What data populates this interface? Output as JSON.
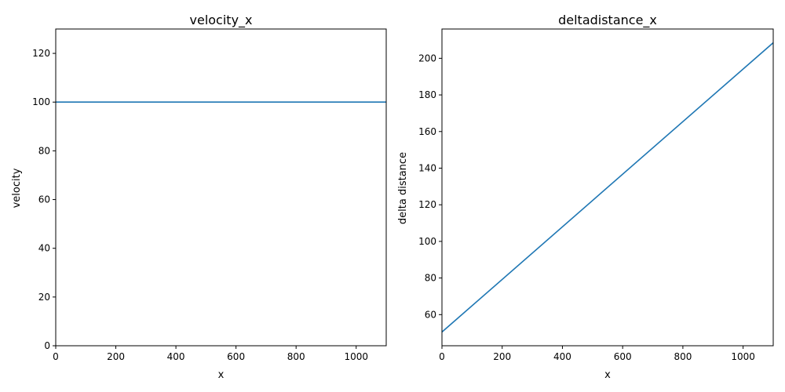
{
  "chart_data": [
    {
      "type": "line",
      "title": "velocity_x",
      "xlabel": "x",
      "ylabel": "velocity",
      "xlim": [
        0,
        1100
      ],
      "ylim": [
        0,
        130
      ],
      "xticks": [
        0,
        200,
        400,
        600,
        800,
        1000
      ],
      "yticks": [
        0,
        20,
        40,
        60,
        80,
        100,
        120
      ],
      "grid": false,
      "series": [
        {
          "x": [
            0,
            1100
          ],
          "y": [
            100,
            100
          ],
          "color": "#1f77b4"
        }
      ]
    },
    {
      "type": "line",
      "title": "deltadistance_x",
      "xlabel": "x",
      "ylabel": "delta distance",
      "xlim": [
        0,
        1100
      ],
      "ylim": [
        43,
        216
      ],
      "xticks": [
        0,
        200,
        400,
        600,
        800,
        1000
      ],
      "yticks": [
        60,
        80,
        100,
        120,
        140,
        160,
        180,
        200
      ],
      "grid": false,
      "series": [
        {
          "x": [
            0,
            1100
          ],
          "y": [
            50.5,
            208.5
          ],
          "color": "#1f77b4"
        }
      ]
    }
  ]
}
